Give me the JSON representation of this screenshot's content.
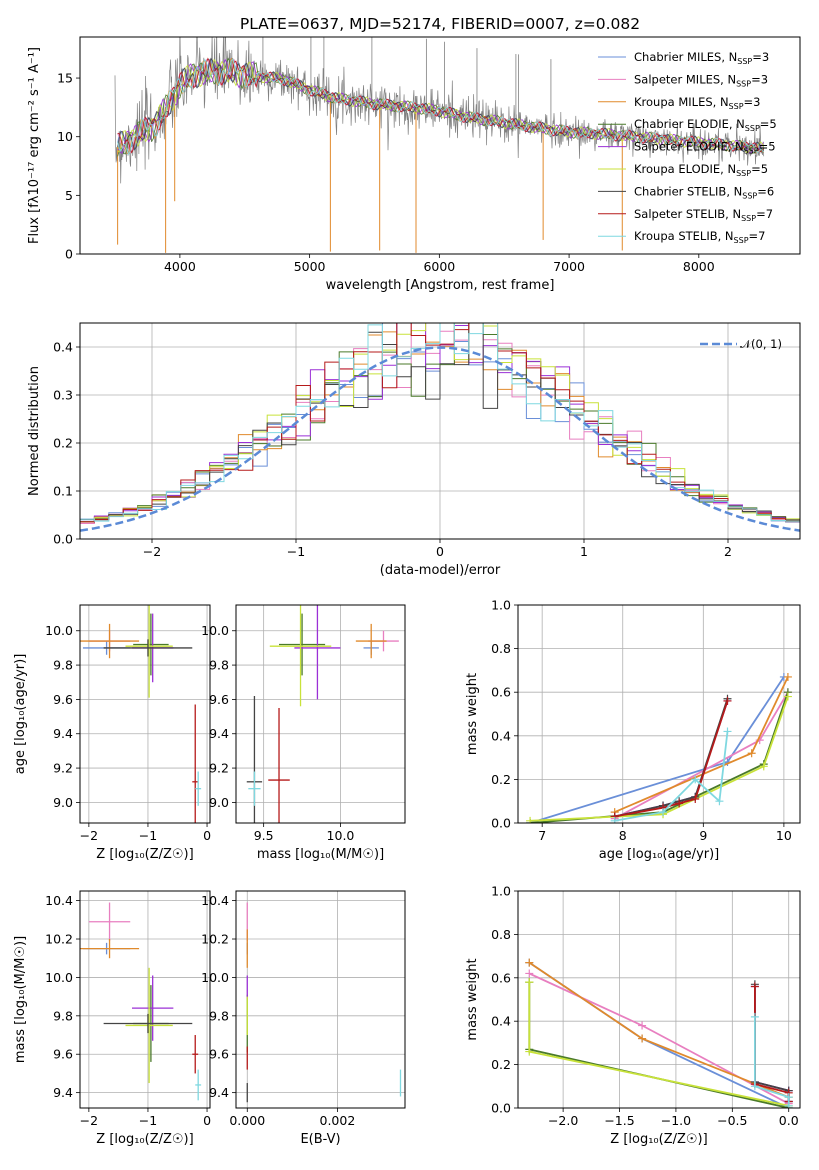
{
  "title": "PLATE=0637, MJD=52174, FIBERID=0007, z=0.082",
  "colors": {
    "Chabrier MILES": "#6a8fd8",
    "Salpeter MILES": "#e87fc0",
    "Kroupa MILES": "#e08a2c",
    "Chabrier ELODIE": "#4a7a2a",
    "Salpeter ELODIE": "#9b30d6",
    "Kroupa ELODIE": "#c8e23a",
    "Chabrier STELIB": "#444444",
    "Salpeter STELIB": "#b51a1a",
    "Kroupa STELIB": "#7fd8e0",
    "data": "#808080",
    "gaussian": "#5b8ad6"
  },
  "legend": {
    "models": [
      {
        "key": "Chabrier MILES",
        "label": "Chabrier MILES, N",
        "sub": "SSP",
        "tail": "=3"
      },
      {
        "key": "Salpeter MILES",
        "label": "Salpeter MILES, N",
        "sub": "SSP",
        "tail": "=3"
      },
      {
        "key": "Kroupa MILES",
        "label": "Kroupa MILES, N",
        "sub": "SSP",
        "tail": "=3"
      },
      {
        "key": "Chabrier ELODIE",
        "label": "Chabrier ELODIE, N",
        "sub": "SSP",
        "tail": "=5"
      },
      {
        "key": "Salpeter ELODIE",
        "label": "Salpeter ELODIE, N",
        "sub": "SSP",
        "tail": "=5"
      },
      {
        "key": "Kroupa ELODIE",
        "label": "Kroupa ELODIE, N",
        "sub": "SSP",
        "tail": "=5"
      },
      {
        "key": "Chabrier STELIB",
        "label": "Chabrier STELIB, N",
        "sub": "SSP",
        "tail": "=6"
      },
      {
        "key": "Salpeter STELIB",
        "label": "Salpeter STELIB, N",
        "sub": "SSP",
        "tail": "=7"
      },
      {
        "key": "Kroupa STELIB",
        "label": "Kroupa STELIB, N",
        "sub": "SSP",
        "tail": "=7"
      }
    ],
    "gaussian_label": "𝒩(0, 1)"
  },
  "chart_data": [
    {
      "id": "spectrum",
      "type": "line",
      "xlabel": "wavelength [Angstrom, rest frame]",
      "ylabel": "Flux [fλ10⁻¹⁷ erg cm⁻² s⁻¹ A⁻¹]",
      "xlim": [
        3230,
        8780
      ],
      "ylim": [
        0,
        18.5
      ],
      "xticks": [
        4000,
        5000,
        6000,
        7000,
        8000
      ],
      "yticks": [
        0,
        5,
        10,
        15
      ],
      "continuum": {
        "x": [
          3500,
          3700,
          3800,
          3900,
          4000,
          4100,
          4300,
          4500,
          4800,
          5000,
          5200,
          5500,
          5800,
          6000,
          6200,
          6500,
          6800,
          7000,
          7300,
          7600,
          8000,
          8300,
          8500
        ],
        "y": [
          9.0,
          10.3,
          10.9,
          12.5,
          14.4,
          15.3,
          15.6,
          15.3,
          14.9,
          14.0,
          13.3,
          12.8,
          12.5,
          12.2,
          11.7,
          11.2,
          10.7,
          10.4,
          10.2,
          9.9,
          9.5,
          9.2,
          9.0
        ]
      },
      "dips": [
        {
          "x": 3520,
          "y": 0.8
        },
        {
          "x": 3890,
          "y": 0.1
        },
        {
          "x": 3960,
          "y": 4.5
        },
        {
          "x": 5160,
          "y": 0.2
        },
        {
          "x": 5540,
          "y": 0.3
        },
        {
          "x": 5820,
          "y": 0.1
        },
        {
          "x": 6800,
          "y": 1.2
        },
        {
          "x": 7410,
          "y": 0.3
        }
      ]
    },
    {
      "id": "residual-hist",
      "type": "step",
      "xlabel": "(data-model)/error",
      "ylabel": "Normed distribution",
      "xlim": [
        -2.5,
        2.5
      ],
      "ylim": [
        0,
        0.45
      ],
      "xticks": [
        -2,
        -1,
        0,
        1,
        2
      ],
      "yticks": [
        0.0,
        0.1,
        0.2,
        0.3,
        0.4
      ],
      "bins": 50,
      "gaussian": {
        "mu": 0,
        "sigma": 1
      }
    },
    {
      "id": "age-vs-Z",
      "type": "errorbar",
      "xlabel": "Z [log₁₀(Z/Z☉)]",
      "ylabel": "age  [log₁₀(age/yr)]",
      "xlim": [
        -2.15,
        0.05
      ],
      "ylim": [
        8.88,
        10.15
      ],
      "xticks": [
        -2,
        -1,
        0
      ],
      "yticks": [
        9.0,
        9.2,
        9.4,
        9.6,
        9.8,
        10.0
      ],
      "points": [
        {
          "model": "Chabrier MILES",
          "x": -1.7,
          "y": 9.9,
          "xerr": 0.4,
          "yerr": 0.04
        },
        {
          "model": "Salpeter MILES",
          "x": -1.65,
          "y": 9.94,
          "xerr": 0.35,
          "yerr": 0.06
        },
        {
          "model": "Kroupa MILES",
          "x": -1.65,
          "y": 9.94,
          "xerr": 0.5,
          "yerr": 0.1
        },
        {
          "model": "Chabrier ELODIE",
          "x": -0.95,
          "y": 9.92,
          "xerr": 0.3,
          "yerr": 0.18
        },
        {
          "model": "Salpeter ELODIE",
          "x": -0.92,
          "y": 9.9,
          "xerr": 0.35,
          "yerr": 0.2
        },
        {
          "model": "Kroupa ELODIE",
          "x": -0.98,
          "y": 9.91,
          "xerr": 0.4,
          "yerr": 0.3
        },
        {
          "model": "Chabrier STELIB",
          "x": -1.0,
          "y": 9.9,
          "xerr": 0.75,
          "yerr": 0.05
        },
        {
          "model": "Salpeter STELIB",
          "x": -0.2,
          "y": 9.12,
          "xerr": 0.05,
          "yerr": 0.45
        },
        {
          "model": "Kroupa STELIB",
          "x": -0.15,
          "y": 9.08,
          "xerr": 0.05,
          "yerr": 0.1
        }
      ]
    },
    {
      "id": "age-vs-mass",
      "type": "errorbar",
      "xlabel": "mass [log₁₀(M/M☉)]",
      "ylabel": "",
      "xlim": [
        9.32,
        10.42
      ],
      "ylim": [
        8.88,
        10.15
      ],
      "xticks": [
        9.5,
        10.0
      ],
      "yticks": [
        9.0,
        9.2,
        9.4,
        9.6,
        9.8,
        10.0
      ],
      "points": [
        {
          "model": "Chabrier MILES",
          "x": 10.2,
          "y": 9.9,
          "xerr": 0.05,
          "yerr": 0.04
        },
        {
          "model": "Salpeter MILES",
          "x": 10.28,
          "y": 9.94,
          "xerr": 0.1,
          "yerr": 0.06
        },
        {
          "model": "Kroupa MILES",
          "x": 10.2,
          "y": 9.94,
          "xerr": 0.1,
          "yerr": 0.1
        },
        {
          "model": "Chabrier ELODIE",
          "x": 9.75,
          "y": 9.92,
          "xerr": 0.15,
          "yerr": 0.18
        },
        {
          "model": "Salpeter ELODIE",
          "x": 9.85,
          "y": 9.9,
          "xerr": 0.15,
          "yerr": 0.3
        },
        {
          "model": "Kroupa ELODIE",
          "x": 9.74,
          "y": 9.91,
          "xerr": 0.2,
          "yerr": 0.35
        },
        {
          "model": "Chabrier STELIB",
          "x": 9.44,
          "y": 9.12,
          "xerr": 0.05,
          "yerr": 0.5
        },
        {
          "model": "Salpeter STELIB",
          "x": 9.6,
          "y": 9.13,
          "xerr": 0.07,
          "yerr": 0.42
        },
        {
          "model": "Kroupa STELIB",
          "x": 9.44,
          "y": 9.08,
          "xerr": 0.04,
          "yerr": 0.1
        }
      ]
    },
    {
      "id": "massweight-vs-age",
      "type": "line",
      "xlabel": "age  [log₁₀(age/yr)]",
      "ylabel": "mass weight",
      "xlim": [
        6.7,
        10.2
      ],
      "ylim": [
        0,
        1.0
      ],
      "xticks": [
        7,
        8,
        9,
        10
      ],
      "yticks": [
        0.0,
        0.2,
        0.4,
        0.6,
        0.8,
        1.0
      ],
      "series": [
        {
          "model": "Chabrier MILES",
          "x": [
            6.85,
            9.3,
            10.0
          ],
          "y": [
            0.0,
            0.28,
            0.67
          ]
        },
        {
          "model": "Salpeter MILES",
          "x": [
            7.9,
            9.7,
            10.05
          ],
          "y": [
            0.02,
            0.38,
            0.6
          ]
        },
        {
          "model": "Kroupa MILES",
          "x": [
            7.9,
            9.6,
            10.05
          ],
          "y": [
            0.05,
            0.32,
            0.67
          ]
        },
        {
          "model": "Chabrier ELODIE",
          "x": [
            6.85,
            8.5,
            9.75,
            10.05
          ],
          "y": [
            0.0,
            0.05,
            0.27,
            0.6
          ]
        },
        {
          "model": "Salpeter ELODIE",
          "x": [
            7.9,
            8.5,
            8.9,
            9.3
          ],
          "y": [
            0.03,
            0.08,
            0.12,
            0.56
          ]
        },
        {
          "model": "Kroupa ELODIE",
          "x": [
            6.85,
            8.5,
            9.75,
            10.05
          ],
          "y": [
            0.01,
            0.04,
            0.26,
            0.58
          ]
        },
        {
          "model": "Chabrier STELIB",
          "x": [
            7.9,
            8.5,
            8.7,
            8.9,
            9.3
          ],
          "y": [
            0.03,
            0.08,
            0.1,
            0.12,
            0.57
          ]
        },
        {
          "model": "Salpeter STELIB",
          "x": [
            7.9,
            8.5,
            8.7,
            8.9,
            9.3
          ],
          "y": [
            0.03,
            0.07,
            0.09,
            0.11,
            0.56
          ]
        },
        {
          "model": "Kroupa STELIB",
          "x": [
            7.9,
            8.5,
            8.9,
            9.2,
            9.3
          ],
          "y": [
            0.01,
            0.05,
            0.2,
            0.1,
            0.42
          ]
        }
      ]
    },
    {
      "id": "mass-vs-Z",
      "type": "errorbar",
      "xlabel": "Z [log₁₀(Z/Z☉)]",
      "ylabel": "mass [log₁₀(M/M☉)]",
      "xlim": [
        -2.15,
        0.05
      ],
      "ylim": [
        9.32,
        10.45
      ],
      "xticks": [
        -2,
        -1,
        0
      ],
      "yticks": [
        9.4,
        9.6,
        9.8,
        10.0,
        10.2,
        10.4
      ],
      "points": [
        {
          "model": "Chabrier MILES",
          "x": -1.7,
          "y": 10.15,
          "xerr": 0.4,
          "yerr": 0.03
        },
        {
          "model": "Salpeter MILES",
          "x": -1.65,
          "y": 10.29,
          "xerr": 0.35,
          "yerr": 0.1
        },
        {
          "model": "Kroupa MILES",
          "x": -1.65,
          "y": 10.15,
          "xerr": 0.5,
          "yerr": 0.05
        },
        {
          "model": "Chabrier ELODIE",
          "x": -0.95,
          "y": 9.76,
          "xerr": 0.3,
          "yerr": 0.2
        },
        {
          "model": "Salpeter ELODIE",
          "x": -0.92,
          "y": 9.84,
          "xerr": 0.35,
          "yerr": 0.17
        },
        {
          "model": "Kroupa ELODIE",
          "x": -0.98,
          "y": 9.75,
          "xerr": 0.4,
          "yerr": 0.3
        },
        {
          "model": "Chabrier STELIB",
          "x": -1.0,
          "y": 9.76,
          "xerr": 0.75,
          "yerr": 0.05
        },
        {
          "model": "Salpeter STELIB",
          "x": -0.2,
          "y": 9.6,
          "xerr": 0.05,
          "yerr": 0.1
        },
        {
          "model": "Kroupa STELIB",
          "x": -0.15,
          "y": 9.44,
          "xerr": 0.05,
          "yerr": 0.08
        }
      ]
    },
    {
      "id": "mass-vs-ebv",
      "type": "errorbar",
      "xlabel": "E(B-V)",
      "ylabel": "",
      "xlim": [
        -0.00025,
        0.0035
      ],
      "ylim": [
        9.32,
        10.45
      ],
      "xticks": [
        0.0,
        0.002
      ],
      "xticklabels": [
        "0.000",
        "0.002"
      ],
      "yticks": [
        9.4,
        9.6,
        9.8,
        10.0,
        10.2,
        10.4
      ],
      "points": [
        {
          "model": "Chabrier MILES",
          "x": 0.0,
          "y": 10.15,
          "xerr": 0,
          "yerr": 0.03
        },
        {
          "model": "Salpeter MILES",
          "x": 0.0,
          "y": 10.29,
          "xerr": 0,
          "yerr": 0.1
        },
        {
          "model": "Kroupa MILES",
          "x": 0.0,
          "y": 10.15,
          "xerr": 0,
          "yerr": 0.1
        },
        {
          "model": "Chabrier ELODIE",
          "x": 0.0,
          "y": 9.76,
          "xerr": 0,
          "yerr": 0.15
        },
        {
          "model": "Salpeter ELODIE",
          "x": 0.0,
          "y": 9.95,
          "xerr": 0,
          "yerr": 0.06
        },
        {
          "model": "Kroupa ELODIE",
          "x": 0.0,
          "y": 9.8,
          "xerr": 0,
          "yerr": 0.1
        },
        {
          "model": "Chabrier STELIB",
          "x": 0.0,
          "y": 9.4,
          "xerr": 0,
          "yerr": 0.05
        },
        {
          "model": "Salpeter STELIB",
          "x": 0.0,
          "y": 9.58,
          "xerr": 0,
          "yerr": 0.06
        },
        {
          "model": "Kroupa STELIB",
          "x": 0.0034,
          "y": 9.45,
          "xerr": 0,
          "yerr": 0.07
        }
      ]
    },
    {
      "id": "massweight-vs-Z",
      "type": "line",
      "xlabel": "Z [log₁₀(Z/Z☉)]",
      "ylabel": "mass weight",
      "xlim": [
        -2.4,
        0.1
      ],
      "ylim": [
        0,
        1.0
      ],
      "xticks": [
        -2.0,
        -1.5,
        -1.0,
        -0.5,
        0.0
      ],
      "xticklabels": [
        "−2.0",
        "−1.5",
        "−1.0",
        "−0.5",
        "0.0"
      ],
      "yticks": [
        0.0,
        0.2,
        0.4,
        0.6,
        0.8,
        1.0
      ],
      "series": [
        {
          "model": "Chabrier MILES",
          "x": [
            -2.3,
            -1.3,
            0.0
          ],
          "y": [
            0.67,
            0.32,
            0.0
          ]
        },
        {
          "model": "Salpeter MILES",
          "x": [
            -2.3,
            -1.3,
            0.0
          ],
          "y": [
            0.62,
            0.38,
            0.02
          ]
        },
        {
          "model": "Kroupa MILES",
          "x": [
            -2.3,
            -1.3,
            0.0
          ],
          "y": [
            0.67,
            0.32,
            0.05
          ]
        },
        {
          "model": "Chabrier ELODIE",
          "x": [
            -2.3,
            -2.3,
            0.0
          ],
          "y": [
            0.58,
            0.27,
            0.0
          ]
        },
        {
          "model": "Salpeter ELODIE",
          "x": [
            -0.3,
            -0.3,
            0.0,
            0.0
          ],
          "y": [
            0.56,
            0.12,
            0.08,
            0.03
          ]
        },
        {
          "model": "Kroupa ELODIE",
          "x": [
            -2.3,
            -2.3,
            0.0
          ],
          "y": [
            0.58,
            0.26,
            0.01
          ]
        },
        {
          "model": "Chabrier STELIB",
          "x": [
            -0.3,
            -0.3,
            0.0,
            0.0
          ],
          "y": [
            0.57,
            0.12,
            0.08,
            0.03
          ]
        },
        {
          "model": "Salpeter STELIB",
          "x": [
            -0.3,
            -0.3,
            0.0,
            0.0
          ],
          "y": [
            0.56,
            0.11,
            0.07,
            0.03
          ]
        },
        {
          "model": "Kroupa STELIB",
          "x": [
            -0.3,
            -0.3,
            0.0,
            0.0
          ],
          "y": [
            0.42,
            0.1,
            0.05,
            0.01
          ]
        }
      ]
    }
  ]
}
